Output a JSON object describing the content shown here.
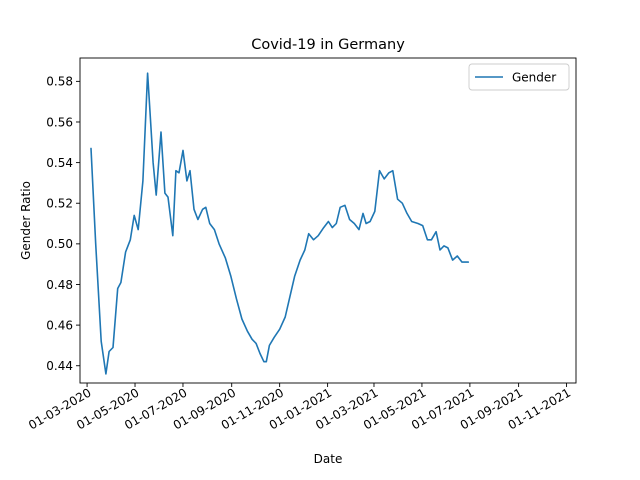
{
  "chart_data": {
    "type": "line",
    "title": "Covid-19 in Germany",
    "xlabel": "Date",
    "ylabel": "Gender Ratio",
    "legend": {
      "position": "top-right",
      "entries": [
        "Gender"
      ]
    },
    "grid": false,
    "xlim": [
      "2020-02-21",
      "2021-11-13"
    ],
    "ylim": [
      0.4315,
      0.5915
    ],
    "x_ticks": [
      {
        "date": "2020-03-01",
        "label": "01-03-2020"
      },
      {
        "date": "2020-05-01",
        "label": "01-05-2020"
      },
      {
        "date": "2020-07-01",
        "label": "01-07-2020"
      },
      {
        "date": "2020-09-01",
        "label": "01-09-2020"
      },
      {
        "date": "2020-11-01",
        "label": "01-11-2020"
      },
      {
        "date": "2021-01-01",
        "label": "01-01-2021"
      },
      {
        "date": "2021-03-01",
        "label": "01-03-2021"
      },
      {
        "date": "2021-05-01",
        "label": "01-05-2021"
      },
      {
        "date": "2021-07-01",
        "label": "01-07-2021"
      },
      {
        "date": "2021-09-01",
        "label": "01-09-2021"
      },
      {
        "date": "2021-11-01",
        "label": "01-11-2021"
      }
    ],
    "y_ticks": [
      {
        "value": 0.44,
        "label": "0.44"
      },
      {
        "value": 0.46,
        "label": "0.46"
      },
      {
        "value": 0.48,
        "label": "0.48"
      },
      {
        "value": 0.5,
        "label": "0.50"
      },
      {
        "value": 0.52,
        "label": "0.52"
      },
      {
        "value": 0.54,
        "label": "0.54"
      },
      {
        "value": 0.56,
        "label": "0.56"
      },
      {
        "value": 0.58,
        "label": "0.58"
      }
    ],
    "series": [
      {
        "name": "Gender",
        "color": "#1f77b4",
        "points": [
          [
            "2020-03-06",
            0.547
          ],
          [
            "2020-03-12",
            0.5
          ],
          [
            "2020-03-19",
            0.452
          ],
          [
            "2020-03-25",
            0.436
          ],
          [
            "2020-03-29",
            0.447
          ],
          [
            "2020-04-03",
            0.449
          ],
          [
            "2020-04-09",
            0.478
          ],
          [
            "2020-04-13",
            0.481
          ],
          [
            "2020-04-19",
            0.496
          ],
          [
            "2020-04-25",
            0.502
          ],
          [
            "2020-04-30",
            0.514
          ],
          [
            "2020-05-05",
            0.507
          ],
          [
            "2020-05-11",
            0.531
          ],
          [
            "2020-05-17",
            0.584
          ],
          [
            "2020-05-20",
            0.565
          ],
          [
            "2020-05-24",
            0.54
          ],
          [
            "2020-05-28",
            0.524
          ],
          [
            "2020-06-03",
            0.555
          ],
          [
            "2020-06-08",
            0.525
          ],
          [
            "2020-06-12",
            0.523
          ],
          [
            "2020-06-18",
            0.504
          ],
          [
            "2020-06-22",
            0.536
          ],
          [
            "2020-06-26",
            0.535
          ],
          [
            "2020-07-01",
            0.546
          ],
          [
            "2020-07-06",
            0.531
          ],
          [
            "2020-07-10",
            0.536
          ],
          [
            "2020-07-15",
            0.517
          ],
          [
            "2020-07-20",
            0.512
          ],
          [
            "2020-07-26",
            0.517
          ],
          [
            "2020-07-30",
            0.518
          ],
          [
            "2020-08-04",
            0.51
          ],
          [
            "2020-08-10",
            0.507
          ],
          [
            "2020-08-16",
            0.5
          ],
          [
            "2020-08-24",
            0.493
          ],
          [
            "2020-08-31",
            0.484
          ],
          [
            "2020-09-07",
            0.473
          ],
          [
            "2020-09-14",
            0.463
          ],
          [
            "2020-09-21",
            0.457
          ],
          [
            "2020-09-27",
            0.453
          ],
          [
            "2020-10-02",
            0.451
          ],
          [
            "2020-10-07",
            0.446
          ],
          [
            "2020-10-12",
            0.442
          ],
          [
            "2020-10-15",
            0.442
          ],
          [
            "2020-10-19",
            0.45
          ],
          [
            "2020-10-25",
            0.454
          ],
          [
            "2020-11-01",
            0.458
          ],
          [
            "2020-11-08",
            0.464
          ],
          [
            "2020-11-14",
            0.474
          ],
          [
            "2020-11-20",
            0.484
          ],
          [
            "2020-11-27",
            0.492
          ],
          [
            "2020-12-03",
            0.497
          ],
          [
            "2020-12-08",
            0.505
          ],
          [
            "2020-12-14",
            0.502
          ],
          [
            "2020-12-20",
            0.504
          ],
          [
            "2020-12-27",
            0.508
          ],
          [
            "2021-01-02",
            0.511
          ],
          [
            "2021-01-07",
            0.508
          ],
          [
            "2021-01-12",
            0.51
          ],
          [
            "2021-01-17",
            0.518
          ],
          [
            "2021-01-23",
            0.519
          ],
          [
            "2021-01-29",
            0.512
          ],
          [
            "2021-02-04",
            0.51
          ],
          [
            "2021-02-10",
            0.507
          ],
          [
            "2021-02-15",
            0.515
          ],
          [
            "2021-02-19",
            0.51
          ],
          [
            "2021-02-24",
            0.511
          ],
          [
            "2021-03-02",
            0.516
          ],
          [
            "2021-03-08",
            0.536
          ],
          [
            "2021-03-14",
            0.532
          ],
          [
            "2021-03-20",
            0.535
          ],
          [
            "2021-03-25",
            0.536
          ],
          [
            "2021-03-31",
            0.522
          ],
          [
            "2021-04-06",
            0.52
          ],
          [
            "2021-04-12",
            0.515
          ],
          [
            "2021-04-18",
            0.511
          ],
          [
            "2021-04-26",
            0.51
          ],
          [
            "2021-05-02",
            0.509
          ],
          [
            "2021-05-08",
            0.502
          ],
          [
            "2021-05-13",
            0.502
          ],
          [
            "2021-05-19",
            0.506
          ],
          [
            "2021-05-24",
            0.497
          ],
          [
            "2021-05-29",
            0.499
          ],
          [
            "2021-06-03",
            0.498
          ],
          [
            "2021-06-09",
            0.492
          ],
          [
            "2021-06-15",
            0.494
          ],
          [
            "2021-06-21",
            0.491
          ],
          [
            "2021-06-29",
            0.491
          ]
        ]
      }
    ]
  }
}
